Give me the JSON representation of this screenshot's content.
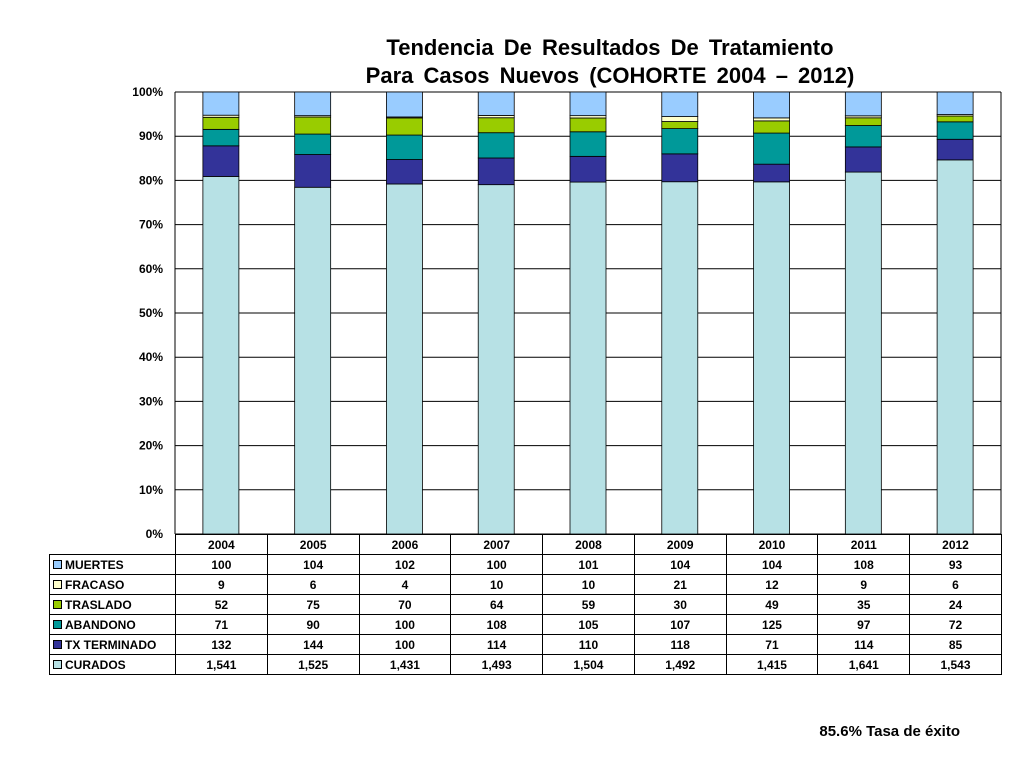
{
  "chart_data": {
    "type": "bar",
    "stacked": true,
    "normalized": true,
    "title": [
      "Tendencia  De  Resultados  De  Tratamiento",
      "Para  Casos  Nuevos  (COHORTE  2004 – 2012)"
    ],
    "categories": [
      "2004",
      "2005",
      "2006",
      "2007",
      "2008",
      "2009",
      "2010",
      "2011",
      "2012"
    ],
    "y_ticks": [
      "0%",
      "10%",
      "20%",
      "30%",
      "40%",
      "50%",
      "60%",
      "70%",
      "80%",
      "90%",
      "100%"
    ],
    "ylim": [
      0,
      100
    ],
    "grid": true,
    "legend": "table-below",
    "series": [
      {
        "name": "MUERTES",
        "color": "#99ccff",
        "values": [
          100,
          104,
          102,
          100,
          101,
          104,
          104,
          108,
          93
        ]
      },
      {
        "name": "FRACASO",
        "color": "#ffffcc",
        "values": [
          9,
          6,
          4,
          10,
          10,
          21,
          12,
          9,
          6
        ]
      },
      {
        "name": "TRASLADO",
        "color": "#99cc00",
        "values": [
          52,
          75,
          70,
          64,
          59,
          30,
          49,
          35,
          24
        ]
      },
      {
        "name": "ABANDONO",
        "color": "#009999",
        "values": [
          71,
          90,
          100,
          108,
          105,
          107,
          125,
          97,
          72
        ]
      },
      {
        "name": "TX TERMINADO",
        "color": "#333399",
        "values": [
          132,
          144,
          100,
          114,
          110,
          118,
          71,
          114,
          85
        ]
      },
      {
        "name": "CURADOS",
        "color": "#b7e1e5",
        "values": [
          1541,
          1525,
          1431,
          1493,
          1504,
          1492,
          1415,
          1641,
          1543
        ]
      }
    ],
    "table_values": [
      [
        "100",
        "104",
        "102",
        "100",
        "101",
        "104",
        "104",
        "108",
        "93"
      ],
      [
        "9",
        "6",
        "4",
        "10",
        "10",
        "21",
        "12",
        "9",
        "6"
      ],
      [
        "52",
        "75",
        "70",
        "64",
        "59",
        "30",
        "49",
        "35",
        "24"
      ],
      [
        "71",
        "90",
        "100",
        "108",
        "105",
        "107",
        "125",
        "97",
        "72"
      ],
      [
        "132",
        "144",
        "100",
        "114",
        "110",
        "118",
        "71",
        "114",
        "85"
      ],
      [
        "1,541",
        "1,525",
        "1,431",
        "1,493",
        "1,504",
        "1,492",
        "1,415",
        "1,641",
        "1,543"
      ]
    ]
  },
  "footnote": "85.6% Tasa de éxito"
}
